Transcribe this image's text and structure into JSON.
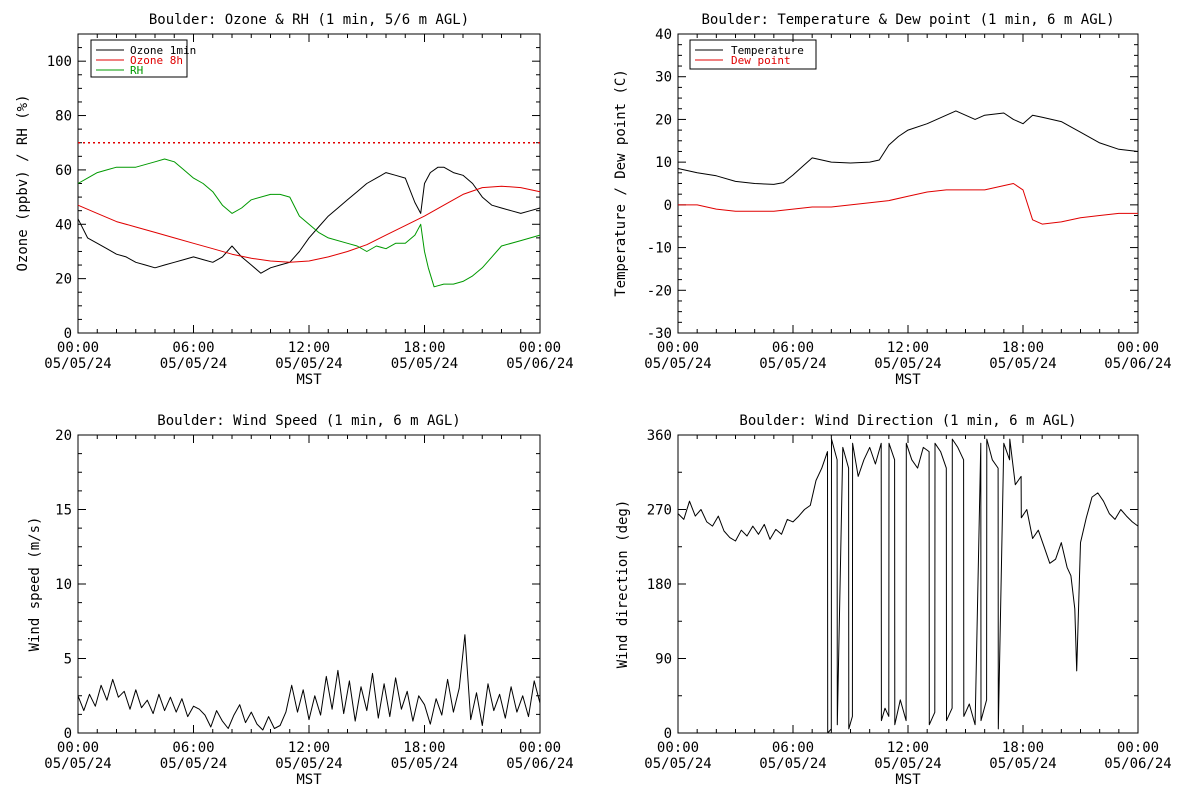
{
  "colors": {
    "background": "#ffffff",
    "axis": "#000000",
    "ozone_1min": "#000000",
    "ozone_8h": "#e00000",
    "rh": "#009900",
    "temperature": "#000000",
    "dew_point": "#e00000",
    "wind": "#000000"
  },
  "chart_data": [
    {
      "type": "line",
      "title": "Boulder: Ozone & RH (1 min, 5/6 m AGL)",
      "xlabel": "MST",
      "ylabel": "Ozone (ppbv) / RH (%)",
      "x_unit": "hours since 00:00 05/05/24",
      "xlim": [
        0,
        24
      ],
      "ylim": [
        0,
        110
      ],
      "yticks": [
        0,
        20,
        40,
        60,
        80,
        100
      ],
      "xtick_labels": [
        [
          "00:00",
          "05/05/24"
        ],
        [
          "06:00",
          "05/05/24"
        ],
        [
          "12:00",
          "05/05/24"
        ],
        [
          "18:00",
          "05/05/24"
        ],
        [
          "00:00",
          "05/06/24"
        ]
      ],
      "legend_position": "top-left",
      "grid": false,
      "reference_lines": [
        {
          "y": 70,
          "style": "dotted",
          "color": "#e00000"
        }
      ],
      "series": [
        {
          "name": "Ozone 1min",
          "color": "#000000",
          "x": [
            0,
            0.5,
            1,
            1.5,
            2,
            2.5,
            3,
            3.5,
            4,
            4.5,
            5,
            5.5,
            6,
            6.5,
            7,
            7.5,
            8,
            8.5,
            9,
            9.5,
            10,
            10.5,
            11,
            11.5,
            12,
            12.5,
            13,
            13.5,
            14,
            14.5,
            15,
            15.5,
            16,
            16.5,
            17,
            17.5,
            17.8,
            18,
            18.3,
            18.7,
            19,
            19.5,
            20,
            20.5,
            21,
            21.5,
            22,
            22.5,
            23,
            23.5,
            24
          ],
          "y": [
            42,
            35,
            33,
            31,
            29,
            28,
            26,
            25,
            24,
            25,
            26,
            27,
            28,
            27,
            26,
            28,
            32,
            28,
            25,
            22,
            24,
            25,
            26,
            30,
            35,
            39,
            43,
            46,
            49,
            52,
            55,
            57,
            59,
            58,
            57,
            48,
            44,
            55,
            59,
            61,
            61,
            59,
            58,
            55,
            50,
            47,
            46,
            45,
            44,
            45,
            46
          ]
        },
        {
          "name": "Ozone 8h",
          "color": "#e00000",
          "x": [
            0,
            1,
            2,
            3,
            4,
            5,
            6,
            7,
            8,
            9,
            10,
            11,
            12,
            13,
            14,
            15,
            16,
            17,
            18,
            19,
            20,
            21,
            22,
            23,
            24
          ],
          "y": [
            47,
            44,
            41,
            39,
            37,
            35,
            33,
            31,
            29,
            27.5,
            26.5,
            26,
            26.5,
            28,
            30,
            32.5,
            36,
            39.5,
            43,
            47,
            51,
            53.5,
            54,
            53.5,
            52
          ]
        },
        {
          "name": "RH",
          "color": "#009900",
          "x": [
            0,
            0.5,
            1,
            1.5,
            2,
            3,
            4,
            4.5,
            5,
            5.5,
            6,
            6.5,
            7,
            7.5,
            8,
            8.5,
            9,
            10,
            10.5,
            11,
            11.5,
            12,
            12.5,
            13,
            14,
            14.5,
            15,
            15.5,
            16,
            16.5,
            17,
            17.5,
            17.8,
            18,
            18.2,
            18.5,
            19,
            19.5,
            20,
            20.5,
            21,
            21.5,
            22,
            23,
            24
          ],
          "y": [
            55,
            57,
            59,
            60,
            61,
            61,
            63,
            64,
            63,
            60,
            57,
            55,
            52,
            47,
            44,
            46,
            49,
            51,
            51,
            50,
            43,
            40,
            37,
            35,
            33,
            32,
            30,
            32,
            31,
            33,
            33,
            36,
            40,
            30,
            24,
            17,
            18,
            18,
            19,
            21,
            24,
            28,
            32,
            34,
            36
          ]
        }
      ]
    },
    {
      "type": "line",
      "title": "Boulder: Temperature & Dew point (1 min, 6 m AGL)",
      "xlabel": "MST",
      "ylabel": "Temperature / Dew point (C)",
      "x_unit": "hours since 00:00 05/05/24",
      "xlim": [
        0,
        24
      ],
      "ylim": [
        -30,
        40
      ],
      "yticks": [
        -30,
        -20,
        -10,
        0,
        10,
        20,
        30,
        40
      ],
      "xtick_labels": [
        [
          "00:00",
          "05/05/24"
        ],
        [
          "06:00",
          "05/05/24"
        ],
        [
          "12:00",
          "05/05/24"
        ],
        [
          "18:00",
          "05/05/24"
        ],
        [
          "00:00",
          "05/06/24"
        ]
      ],
      "legend_position": "top-left",
      "grid": false,
      "series": [
        {
          "name": "Temperature",
          "color": "#000000",
          "x": [
            0,
            1,
            2,
            3,
            4,
            5,
            5.5,
            6,
            6.5,
            7,
            7.5,
            8,
            9,
            10,
            10.5,
            11,
            11.5,
            12,
            13,
            14,
            14.5,
            15,
            15.5,
            16,
            17,
            17.5,
            18,
            18.5,
            19,
            20,
            21,
            22,
            23,
            24
          ],
          "y": [
            8.5,
            7.5,
            6.8,
            5.5,
            5,
            4.8,
            5.2,
            7,
            9,
            11,
            10.5,
            10,
            9.8,
            10,
            10.5,
            14,
            16,
            17.5,
            19,
            21,
            22,
            21,
            20,
            21,
            21.5,
            20,
            19,
            21,
            20.5,
            19.5,
            17,
            14.5,
            13,
            12.5
          ]
        },
        {
          "name": "Dew point",
          "color": "#e00000",
          "x": [
            0,
            1,
            2,
            3,
            4,
            5,
            6,
            7,
            8,
            9,
            10,
            11,
            12,
            13,
            14,
            15,
            16,
            17,
            17.5,
            18,
            18.5,
            19,
            20,
            21,
            22,
            23,
            24
          ],
          "y": [
            0,
            0,
            -1,
            -1.5,
            -1.5,
            -1.5,
            -1,
            -0.5,
            -0.5,
            0,
            0.5,
            1,
            2,
            3,
            3.5,
            3.5,
            3.5,
            4.5,
            5,
            3.5,
            -3.5,
            -4.5,
            -4,
            -3,
            -2.5,
            -2,
            -2
          ]
        }
      ]
    },
    {
      "type": "line",
      "title": "Boulder: Wind Speed (1 min, 6 m AGL)",
      "xlabel": "MST",
      "ylabel": "Wind speed (m/s)",
      "x_unit": "hours since 00:00 05/05/24",
      "xlim": [
        0,
        24
      ],
      "ylim": [
        0,
        20
      ],
      "yticks": [
        0,
        5,
        10,
        15,
        20
      ],
      "xtick_labels": [
        [
          "00:00",
          "05/05/24"
        ],
        [
          "06:00",
          "05/05/24"
        ],
        [
          "12:00",
          "05/05/24"
        ],
        [
          "18:00",
          "05/05/24"
        ],
        [
          "00:00",
          "05/06/24"
        ]
      ],
      "grid": false,
      "series": [
        {
          "color": "#000000",
          "x": [
            0,
            0.3,
            0.6,
            0.9,
            1.2,
            1.5,
            1.8,
            2.1,
            2.4,
            2.7,
            3,
            3.3,
            3.6,
            3.9,
            4.2,
            4.5,
            4.8,
            5.1,
            5.4,
            5.7,
            6,
            6.3,
            6.6,
            6.9,
            7.2,
            7.5,
            7.8,
            8.1,
            8.4,
            8.7,
            9,
            9.3,
            9.6,
            9.9,
            10.2,
            10.5,
            10.8,
            11.1,
            11.4,
            11.7,
            12,
            12.3,
            12.6,
            12.9,
            13.2,
            13.5,
            13.8,
            14.1,
            14.4,
            14.7,
            15,
            15.3,
            15.6,
            15.9,
            16.2,
            16.5,
            16.8,
            17.1,
            17.4,
            17.7,
            18,
            18.3,
            18.6,
            18.9,
            19.2,
            19.5,
            19.8,
            20.1,
            20.4,
            20.7,
            21,
            21.3,
            21.6,
            21.9,
            22.2,
            22.5,
            22.8,
            23.1,
            23.4,
            23.7,
            24
          ],
          "y": [
            2.5,
            1.5,
            2.6,
            1.8,
            3.2,
            2.2,
            3.6,
            2.4,
            2.8,
            1.6,
            2.9,
            1.7,
            2.2,
            1.3,
            2.6,
            1.5,
            2.4,
            1.4,
            2.3,
            1.1,
            1.8,
            1.6,
            1.2,
            0.4,
            1.5,
            0.8,
            0.3,
            1.2,
            1.9,
            0.7,
            1.4,
            0.6,
            0.2,
            1.1,
            0.3,
            0.5,
            1.4,
            3.2,
            1.4,
            2.9,
            0.9,
            2.5,
            1.2,
            3.8,
            1.6,
            4.2,
            1.3,
            3.5,
            0.8,
            3.1,
            1.5,
            4.0,
            1.0,
            3.3,
            1.1,
            3.7,
            1.6,
            2.8,
            0.8,
            2.5,
            1.9,
            0.6,
            2.3,
            1.2,
            3.6,
            1.4,
            3.0,
            6.6,
            0.9,
            2.7,
            0.5,
            3.3,
            1.5,
            2.6,
            1.0,
            3.1,
            1.4,
            2.5,
            1.1,
            3.5,
            2.0
          ]
        }
      ]
    },
    {
      "type": "line",
      "title": "Boulder: Wind Direction (1 min, 6 m AGL)",
      "xlabel": "MST",
      "ylabel": "Wind direction (deg)",
      "x_unit": "hours since 00:00 05/05/24",
      "xlim": [
        0,
        24
      ],
      "ylim": [
        0,
        360
      ],
      "yticks": [
        0,
        90,
        180,
        270,
        360
      ],
      "xtick_labels": [
        [
          "00:00",
          "05/05/24"
        ],
        [
          "06:00",
          "05/05/24"
        ],
        [
          "12:00",
          "05/05/24"
        ],
        [
          "18:00",
          "05/05/24"
        ],
        [
          "00:00",
          "05/06/24"
        ]
      ],
      "grid": false,
      "series": [
        {
          "color": "#000000",
          "x": [
            0,
            0.3,
            0.6,
            0.9,
            1.2,
            1.5,
            1.8,
            2.1,
            2.4,
            2.7,
            3,
            3.3,
            3.6,
            3.9,
            4.2,
            4.5,
            4.8,
            5.1,
            5.4,
            5.7,
            6,
            6.3,
            6.6,
            6.9,
            7.2,
            7.5,
            7.8,
            7.81,
            8.0,
            8.01,
            8.3,
            8.31,
            8.6,
            8.9,
            8.91,
            9.1,
            9.11,
            9.4,
            9.7,
            10,
            10.3,
            10.6,
            10.61,
            10.8,
            11,
            11.01,
            11.3,
            11.31,
            11.6,
            11.9,
            11.91,
            12.2,
            12.5,
            12.8,
            13.1,
            13.11,
            13.4,
            13.41,
            13.7,
            14,
            14.01,
            14.3,
            14.31,
            14.6,
            14.9,
            14.91,
            15.2,
            15.5,
            15.8,
            15.81,
            16.1,
            16.11,
            16.4,
            16.7,
            16.71,
            17,
            17.3,
            17.31,
            17.6,
            17.9,
            17.91,
            18.2,
            18.5,
            18.8,
            19.1,
            19.4,
            19.7,
            20,
            20.3,
            20.5,
            20.7,
            20.8,
            21,
            21.3,
            21.6,
            21.9,
            22.2,
            22.5,
            22.8,
            23.1,
            23.4,
            23.7,
            24
          ],
          "y": [
            265,
            258,
            280,
            262,
            270,
            255,
            250,
            262,
            244,
            236,
            232,
            245,
            238,
            250,
            240,
            252,
            234,
            246,
            240,
            258,
            255,
            262,
            270,
            275,
            305,
            320,
            340,
            0,
            5,
            355,
            330,
            10,
            345,
            320,
            5,
            20,
            350,
            310,
            330,
            345,
            325,
            350,
            15,
            30,
            20,
            350,
            330,
            10,
            40,
            15,
            350,
            330,
            320,
            345,
            340,
            10,
            25,
            350,
            340,
            320,
            15,
            30,
            355,
            345,
            330,
            20,
            35,
            10,
            350,
            15,
            40,
            355,
            330,
            320,
            5,
            350,
            330,
            355,
            300,
            310,
            260,
            270,
            235,
            245,
            225,
            205,
            210,
            230,
            200,
            190,
            150,
            75,
            230,
            260,
            285,
            290,
            280,
            265,
            258,
            270,
            262,
            255,
            250
          ]
        }
      ]
    }
  ]
}
